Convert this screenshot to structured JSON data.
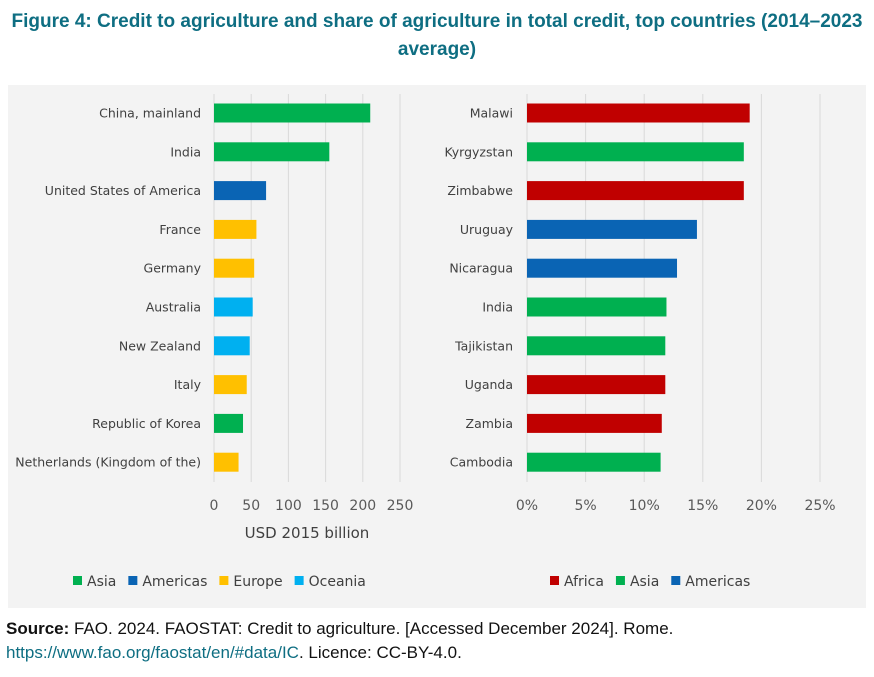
{
  "title": "Figure 4: Credit to agriculture and share of agriculture in total credit, top countries (2014–2023 average)",
  "colors": {
    "Asia": "#00b050",
    "Americas": "#0a64b4",
    "Europe": "#ffc000",
    "Oceania": "#00b0f0",
    "Africa": "#c00000",
    "grid": "#d9d9d9",
    "title": "#0e6e82"
  },
  "chart_data": [
    {
      "type": "bar",
      "orientation": "horizontal",
      "categories": [
        "China, mainland",
        "India",
        "United States of America",
        "France",
        "Germany",
        "Australia",
        "New Zealand",
        "Italy",
        "Republic of Korea",
        "Netherlands (Kingdom of the)"
      ],
      "values": [
        210,
        155,
        70,
        57,
        54,
        52,
        48,
        44,
        39,
        33
      ],
      "regions": [
        "Asia",
        "Asia",
        "Americas",
        "Europe",
        "Europe",
        "Oceania",
        "Oceania",
        "Europe",
        "Asia",
        "Europe"
      ],
      "xlabel": "USD 2015 billion",
      "xlim": [
        0,
        250
      ],
      "xticks": [
        "0",
        "50",
        "100",
        "150",
        "200",
        "250"
      ],
      "legend": [
        "Asia",
        "Americas",
        "Europe",
        "Oceania"
      ],
      "legend_position": "bottom",
      "grid": true
    },
    {
      "type": "bar",
      "orientation": "horizontal",
      "categories": [
        "Malawi",
        "Kyrgyzstan",
        "Zimbabwe",
        "Uruguay",
        "Nicaragua",
        "India",
        "Tajikistan",
        "Uganda",
        "Zambia",
        "Cambodia"
      ],
      "values": [
        19.0,
        18.5,
        18.5,
        14.5,
        12.8,
        11.9,
        11.8,
        11.8,
        11.5,
        11.4
      ],
      "regions": [
        "Africa",
        "Asia",
        "Africa",
        "Americas",
        "Americas",
        "Asia",
        "Asia",
        "Africa",
        "Africa",
        "Asia"
      ],
      "xlabel": "",
      "xlim": [
        0,
        25
      ],
      "xticks": [
        "0%",
        "5%",
        "10%",
        "15%",
        "20%",
        "25%"
      ],
      "legend": [
        "Africa",
        "Asia",
        "Americas"
      ],
      "legend_position": "bottom",
      "grid": true
    }
  ],
  "source": {
    "label": "Source:",
    "text": " FAO. 2024. FAOSTAT: Credit to agriculture. [Accessed December 2024]. Rome.",
    "link": "https://www.fao.org/faostat/en/#data/IC",
    "licence": ". Licence: CC-BY-4.0."
  }
}
